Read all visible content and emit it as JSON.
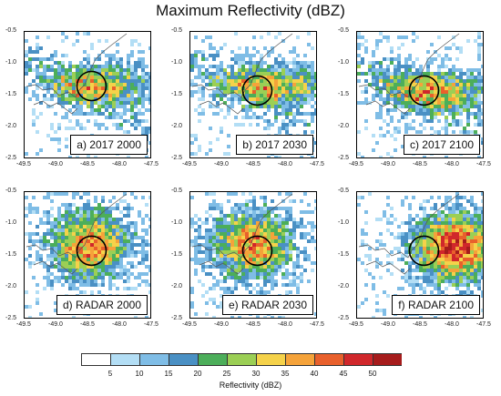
{
  "title": "Maximum Reflectivity (dBZ)",
  "chart_data": [
    {
      "type": "heatmap",
      "panel_label": "a) 2017 2000",
      "xlim": [
        -49.5,
        -47.5
      ],
      "ylim": [
        -2.5,
        -0.5
      ],
      "xticks": [
        "-49.5",
        "-49.0",
        "-48.5",
        "-48.0",
        "-47.5"
      ],
      "yticks": [
        "-0.5",
        "-1.0",
        "-1.5",
        "-2.0",
        "-2.5"
      ],
      "circle_center": [
        -48.45,
        -1.35
      ],
      "storm_center": [
        -48.3,
        -1.3
      ],
      "storm_intensity": 0.55
    },
    {
      "type": "heatmap",
      "panel_label": "b) 2017 2030",
      "xlim": [
        -49.5,
        -47.5
      ],
      "ylim": [
        -2.5,
        -0.5
      ],
      "xticks": [
        "-49.5",
        "-49.0",
        "-48.5",
        "-48.0",
        "-47.5"
      ],
      "yticks": [
        "-0.5",
        "-1.0",
        "-1.5",
        "-2.0",
        "-2.5"
      ],
      "circle_center": [
        -48.45,
        -1.42
      ],
      "storm_center": [
        -48.2,
        -1.3
      ],
      "storm_intensity": 0.6
    },
    {
      "type": "heatmap",
      "panel_label": "c) 2017 2100",
      "xlim": [
        -49.5,
        -47.5
      ],
      "ylim": [
        -2.5,
        -0.5
      ],
      "xticks": [
        "-49.5",
        "-49.0",
        "-48.5",
        "-48.0",
        "-47.5"
      ],
      "yticks": [
        "-0.5",
        "-1.0",
        "-1.5",
        "-2.0",
        "-2.5"
      ],
      "circle_center": [
        -48.45,
        -1.42
      ],
      "storm_center": [
        -48.3,
        -1.4
      ],
      "storm_intensity": 0.6
    },
    {
      "type": "heatmap",
      "panel_label": "d) RADAR 2000",
      "xlim": [
        -49.5,
        -47.5
      ],
      "ylim": [
        -2.5,
        -0.5
      ],
      "xticks": [
        "-49.5",
        "-49.0",
        "-48.5",
        "-48.0",
        "-47.5"
      ],
      "yticks": [
        "-0.5",
        "-1.0",
        "-1.5",
        "-2.0",
        "-2.5"
      ],
      "circle_center": [
        -48.45,
        -1.42
      ],
      "storm_center": [
        -48.5,
        -1.3
      ],
      "storm_intensity": 0.75
    },
    {
      "type": "heatmap",
      "panel_label": "e) RADAR 2030",
      "xlim": [
        -49.5,
        -47.5
      ],
      "ylim": [
        -2.5,
        -0.5
      ],
      "xticks": [
        "-49.5",
        "-49.0",
        "-48.5",
        "-48.0",
        "-47.5"
      ],
      "yticks": [
        "-0.5",
        "-1.0",
        "-1.5",
        "-2.0",
        "-2.5"
      ],
      "circle_center": [
        -48.45,
        -1.42
      ],
      "storm_center": [
        -48.55,
        -1.3
      ],
      "storm_intensity": 0.75
    },
    {
      "type": "heatmap",
      "panel_label": "f) RADAR 2100",
      "xlim": [
        -49.5,
        -47.5
      ],
      "ylim": [
        -2.5,
        -0.5
      ],
      "xticks": [
        "-49.5",
        "-49.0",
        "-48.5",
        "-48.0",
        "-47.5"
      ],
      "yticks": [
        "-0.5",
        "-1.0",
        "-1.5",
        "-2.0",
        "-2.5"
      ],
      "circle_center": [
        -48.45,
        -1.42
      ],
      "storm_center": [
        -48.0,
        -1.35
      ],
      "storm_intensity": 0.9
    }
  ],
  "colorbar": {
    "label": "Reflectivity (dBZ)",
    "ticks": [
      "5",
      "10",
      "15",
      "20",
      "25",
      "30",
      "35",
      "40",
      "45",
      "50"
    ],
    "colors": [
      "#ffffff",
      "#b3def5",
      "#7fbde6",
      "#4a90c4",
      "#4cae5a",
      "#9bcf55",
      "#f5d24a",
      "#f5a33a",
      "#e8602c",
      "#d0272b",
      "#a61c1c"
    ]
  }
}
